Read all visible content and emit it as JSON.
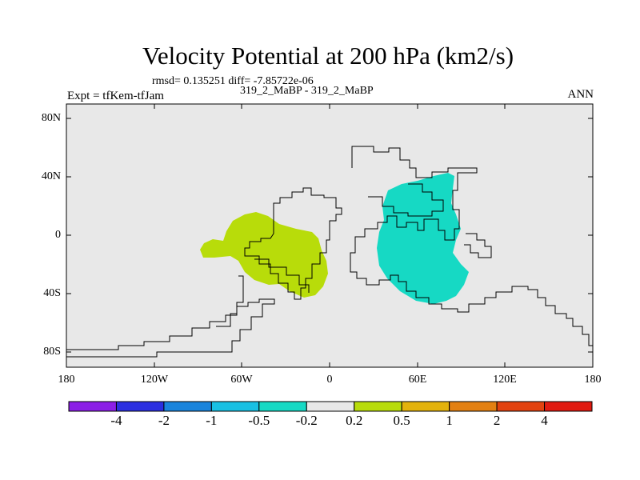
{
  "chart_data": {
    "type": "heatmap",
    "title": "Velocity Potential at 200 hPa (km2/s)",
    "stats_text": "rmsd= 0.135251 diff= -7.85722e-06",
    "case_text": "319_2_MaBP - 319_2_MaBP",
    "left_label": "Expt = tfKem-tfJam",
    "right_label": "ANN",
    "x_ticks": [
      "180",
      "120W",
      "60W",
      "0",
      "60E",
      "120E",
      "180"
    ],
    "y_ticks": [
      "80N",
      "40N",
      "0",
      "40S",
      "80S"
    ],
    "xlim": [
      -180,
      180
    ],
    "ylim": [
      -90,
      90
    ],
    "grid": false,
    "colorbar": {
      "labels": [
        "-4",
        "-2",
        "-1",
        "-0.5",
        "-0.2",
        "0.2",
        "0.5",
        "1",
        "2",
        "4"
      ],
      "colors": [
        "#8b1ee6",
        "#2b2fe0",
        "#1a84dc",
        "#19c0e3",
        "#16d9c4",
        "#e8e8e8",
        "#b8dc0a",
        "#e3b20b",
        "#e38012",
        "#e2420f",
        "#e01a10"
      ]
    },
    "regions": [
      {
        "level": "0.2 to 0.5",
        "color": "#b8dc0a",
        "center_lon": -40,
        "center_lat": -10
      },
      {
        "level": "-0.5 to -0.2",
        "color": "#16d9c4",
        "center_lon": 80,
        "center_lat": -5
      }
    ]
  }
}
